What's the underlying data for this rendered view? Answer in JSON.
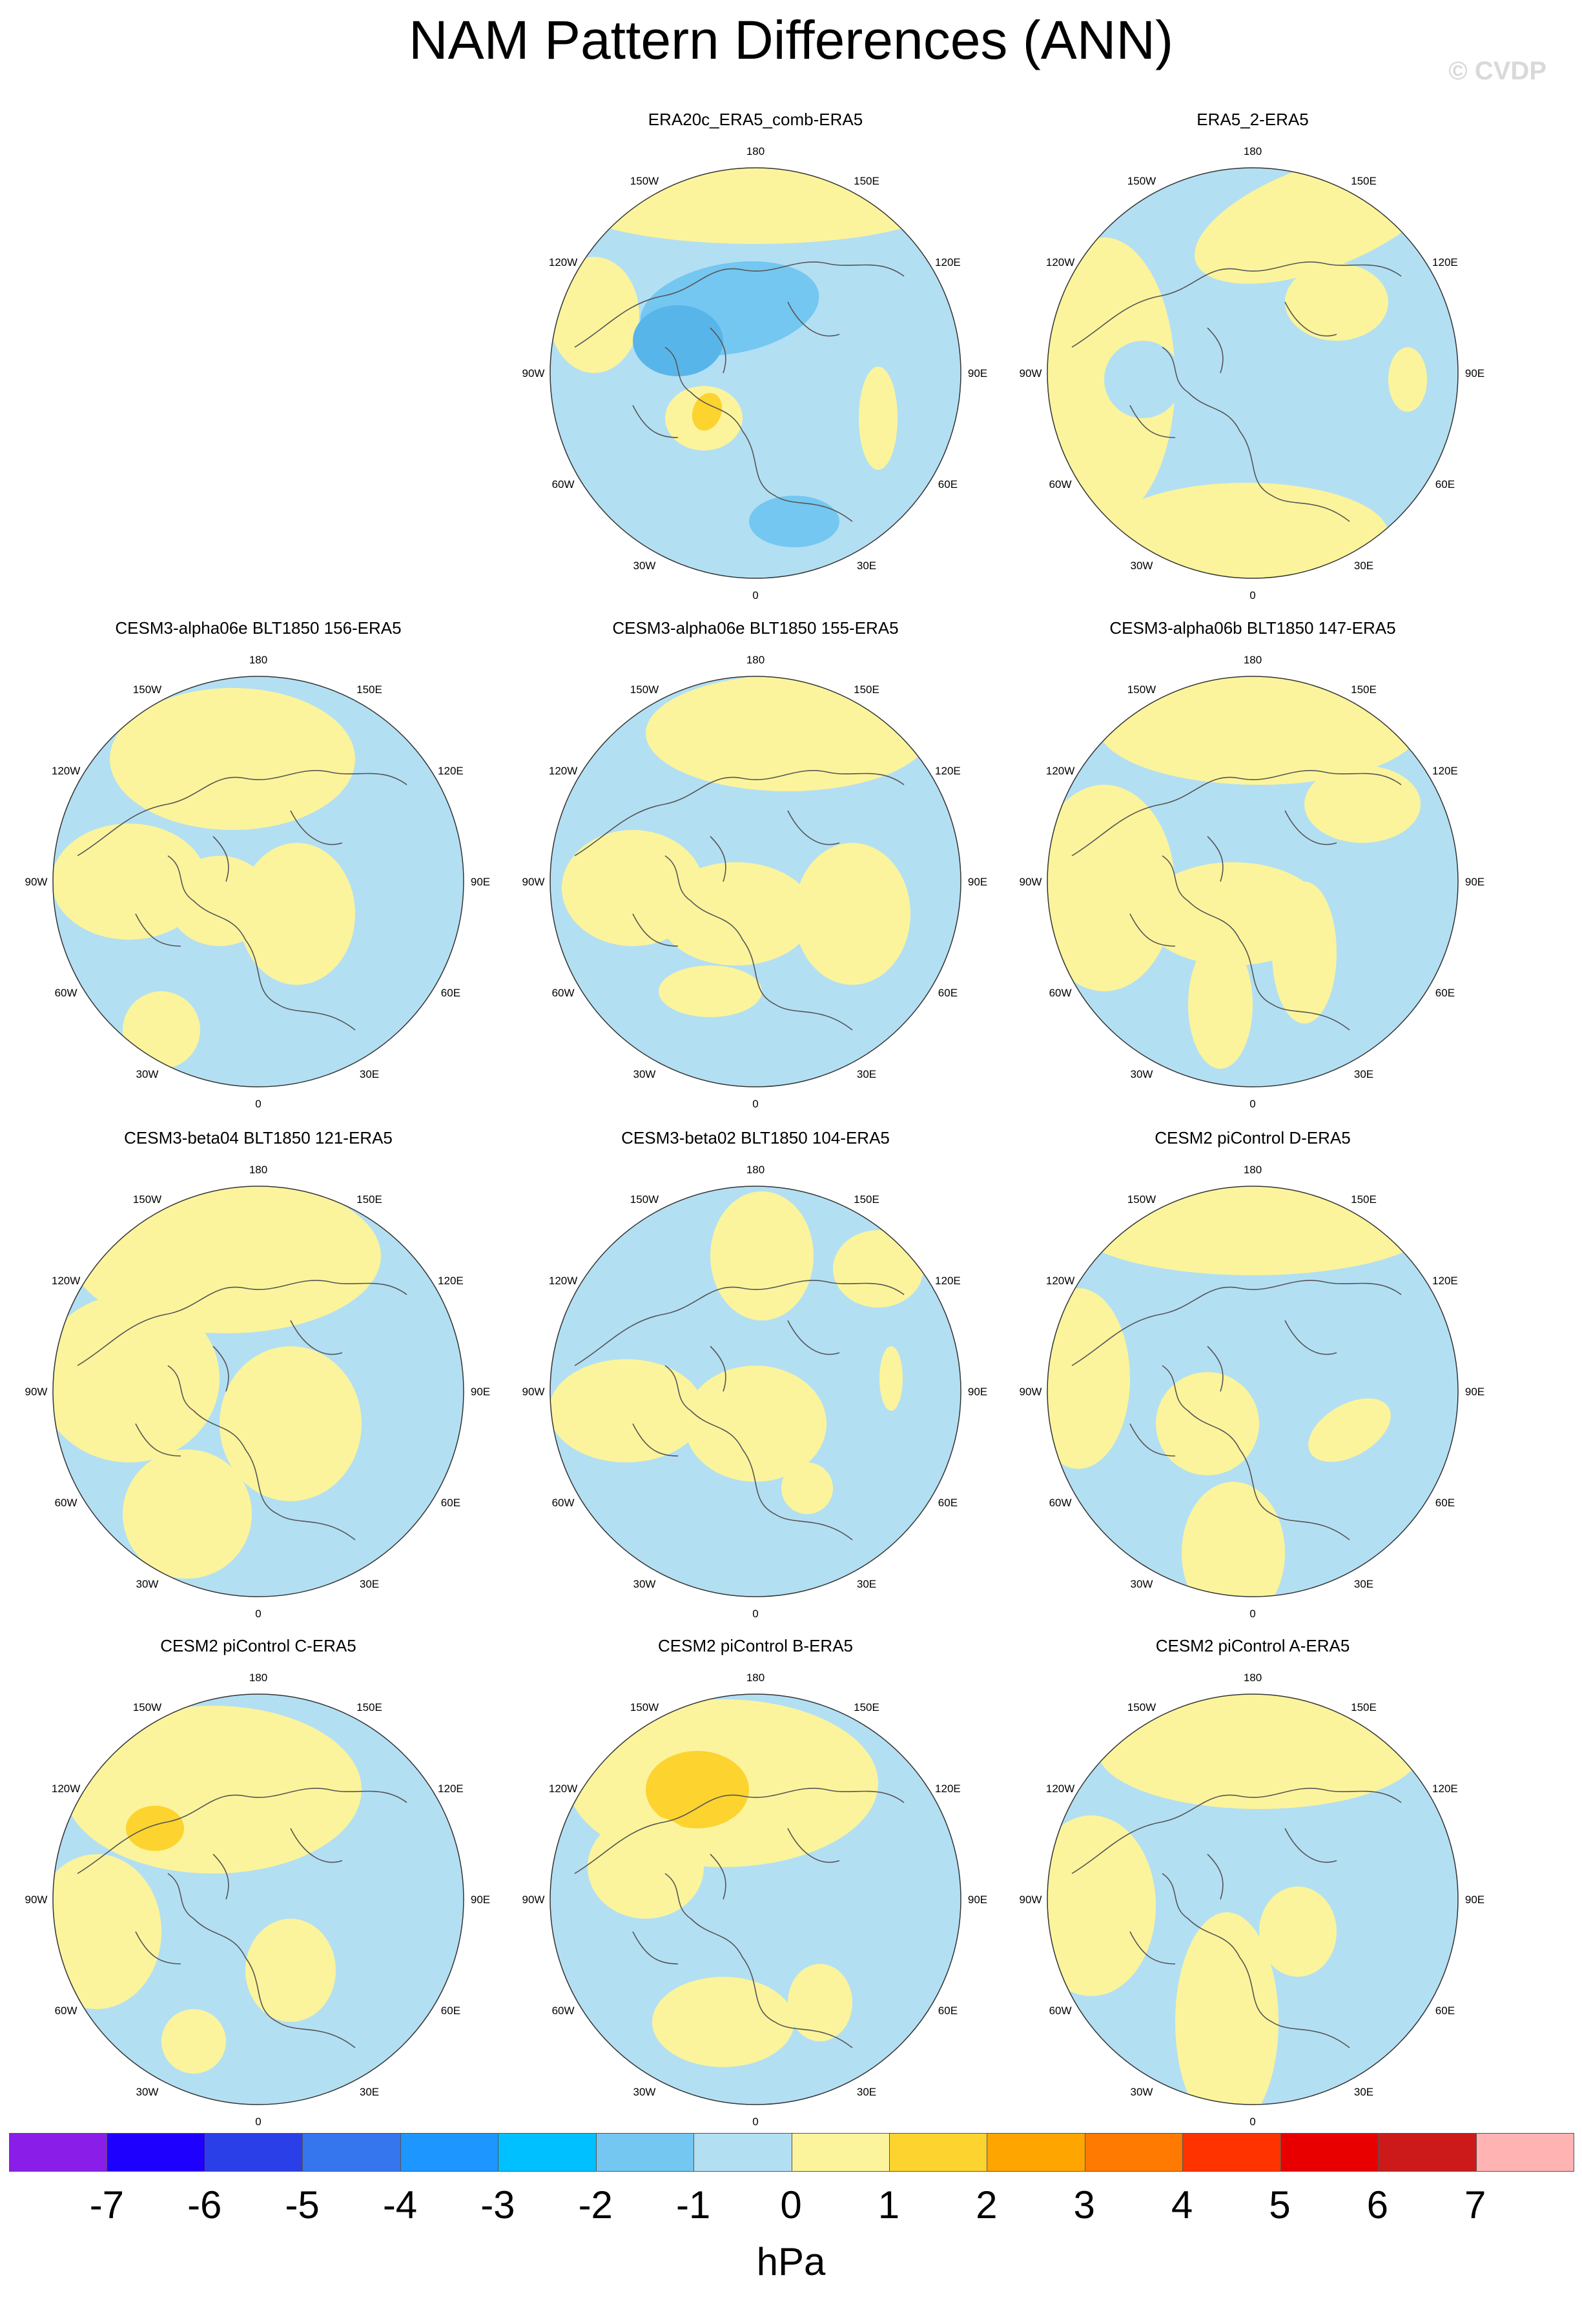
{
  "title": "NAM Pattern Differences (ANN)",
  "copyright": "© CVDP",
  "colors": {
    "ocean_neg": "#b3dff3",
    "pos_light": "#fbf49c",
    "pos_mid": "#fcd32f",
    "neg_mid": "#74c7f0",
    "neg_strong": "#58b5ea",
    "coast": "#555555"
  },
  "longitude_labels": [
    "180",
    "150E",
    "120E",
    "90E",
    "60E",
    "30E",
    "0",
    "30W",
    "60W",
    "90W",
    "120W",
    "150W"
  ],
  "panels": [
    {
      "title": "ERA20c_ERA5_comb-ERA5",
      "variant": 0
    },
    {
      "title": "ERA5_2-ERA5",
      "variant": 1
    },
    {
      "title": "CESM3-alpha06e BLT1850 156-ERA5",
      "variant": 2
    },
    {
      "title": "CESM3-alpha06e BLT1850 155-ERA5",
      "variant": 3
    },
    {
      "title": "CESM3-alpha06b BLT1850 147-ERA5",
      "variant": 4
    },
    {
      "title": "CESM3-beta04 BLT1850 121-ERA5",
      "variant": 5
    },
    {
      "title": "CESM3-beta02 BLT1850 104-ERA5",
      "variant": 6
    },
    {
      "title": "CESM2 piControl D-ERA5",
      "variant": 7
    },
    {
      "title": "CESM2 piControl C-ERA5",
      "variant": 8
    },
    {
      "title": "CESM2 piControl B-ERA5",
      "variant": 9
    },
    {
      "title": "CESM2 piControl A-ERA5",
      "variant": 10
    }
  ],
  "colorbar": {
    "colors": [
      "#8a1ee8",
      "#1e00ff",
      "#2a3fe8",
      "#3575ee",
      "#1e96ff",
      "#00c0ff",
      "#74c7f0",
      "#b3dff3",
      "#fbf49c",
      "#fcd32f",
      "#ffa500",
      "#ff7a00",
      "#ff3300",
      "#e80000",
      "#cc1a1a",
      "#ffb3b3"
    ],
    "ticks": [
      "-7",
      "-6",
      "-5",
      "-4",
      "-3",
      "-2",
      "-1",
      "0",
      "1",
      "2",
      "3",
      "4",
      "5",
      "6",
      "7"
    ],
    "units": "hPa"
  }
}
